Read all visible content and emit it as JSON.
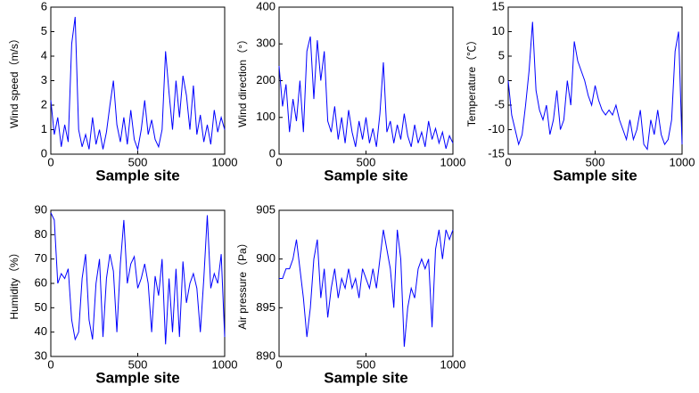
{
  "chart_data": [
    {
      "type": "line",
      "ylabel": "Wind speed（m/s）",
      "xlabel": "Sample site",
      "color": "#0000ff",
      "xlim": [
        0,
        1000
      ],
      "xticks": [
        0,
        500,
        1000
      ],
      "ylim": [
        0,
        6
      ],
      "yticks": [
        0,
        1,
        2,
        3,
        4,
        5,
        6
      ],
      "x": [
        0,
        20,
        40,
        60,
        80,
        100,
        120,
        140,
        160,
        180,
        200,
        220,
        240,
        260,
        280,
        300,
        320,
        340,
        360,
        380,
        400,
        420,
        440,
        460,
        480,
        500,
        520,
        540,
        560,
        580,
        600,
        620,
        640,
        660,
        680,
        700,
        720,
        740,
        760,
        780,
        800,
        820,
        840,
        860,
        880,
        900,
        920,
        940,
        960,
        980,
        1000
      ],
      "values": [
        2.2,
        0.8,
        1.5,
        0.3,
        1.2,
        0.5,
        4.5,
        5.6,
        1.0,
        0.3,
        0.8,
        0.2,
        1.5,
        0.4,
        1.0,
        0.2,
        0.9,
        2.0,
        3.0,
        1.2,
        0.5,
        1.5,
        0.4,
        1.8,
        0.6,
        0.2,
        1.0,
        2.2,
        0.8,
        1.4,
        0.6,
        0.3,
        1.0,
        4.2,
        2.5,
        1.0,
        3.0,
        1.5,
        3.2,
        2.4,
        1.0,
        2.8,
        0.8,
        1.6,
        0.5,
        1.2,
        0.4,
        1.8,
        0.9,
        1.5,
        1.0
      ]
    },
    {
      "type": "line",
      "ylabel": "Wind direction（°）",
      "xlabel": "Sample site",
      "color": "#0000ff",
      "xlim": [
        0,
        1000
      ],
      "xticks": [
        0,
        500,
        1000
      ],
      "ylim": [
        0,
        400
      ],
      "yticks": [
        0,
        100,
        200,
        300,
        400
      ],
      "x": [
        0,
        20,
        40,
        60,
        80,
        100,
        120,
        140,
        160,
        180,
        200,
        220,
        240,
        260,
        280,
        300,
        320,
        340,
        360,
        380,
        400,
        420,
        440,
        460,
        480,
        500,
        520,
        540,
        560,
        580,
        600,
        620,
        640,
        660,
        680,
        700,
        720,
        740,
        760,
        780,
        800,
        820,
        840,
        860,
        880,
        900,
        920,
        940,
        960,
        980,
        1000
      ],
      "values": [
        240,
        130,
        190,
        60,
        150,
        90,
        200,
        60,
        280,
        320,
        150,
        310,
        200,
        280,
        90,
        60,
        130,
        40,
        100,
        30,
        120,
        60,
        20,
        90,
        40,
        100,
        30,
        70,
        20,
        110,
        250,
        60,
        90,
        30,
        80,
        40,
        110,
        50,
        20,
        80,
        30,
        60,
        20,
        90,
        40,
        70,
        30,
        60,
        15,
        50,
        30
      ]
    },
    {
      "type": "line",
      "ylabel": "Temperature（℃）",
      "xlabel": "Sample site",
      "color": "#0000ff",
      "xlim": [
        0,
        1000
      ],
      "xticks": [
        0,
        500,
        1000
      ],
      "ylim": [
        -15,
        15
      ],
      "yticks": [
        -15,
        -10,
        -5,
        0,
        5,
        10,
        15
      ],
      "x": [
        0,
        20,
        40,
        60,
        80,
        100,
        120,
        140,
        160,
        180,
        200,
        220,
        240,
        260,
        280,
        300,
        320,
        340,
        360,
        380,
        400,
        420,
        440,
        460,
        480,
        500,
        520,
        540,
        560,
        580,
        600,
        620,
        640,
        660,
        680,
        700,
        720,
        740,
        760,
        780,
        800,
        820,
        840,
        860,
        880,
        900,
        920,
        940,
        960,
        980,
        1000
      ],
      "values": [
        0,
        -7,
        -10,
        -13,
        -11,
        -5,
        2,
        12,
        -2,
        -6,
        -8,
        -5,
        -11,
        -8,
        -2,
        -10,
        -8,
        0,
        -5,
        8,
        4,
        2,
        0,
        -3,
        -5,
        -1,
        -4,
        -6,
        -7,
        -6,
        -7,
        -5,
        -8,
        -10,
        -12,
        -8,
        -12,
        -10,
        -6,
        -13,
        -14,
        -8,
        -11,
        -6,
        -11,
        -13,
        -12,
        -8,
        6,
        10,
        -13
      ]
    },
    {
      "type": "line",
      "ylabel": "Humidity（%）",
      "xlabel": "Sample site",
      "color": "#0000ff",
      "xlim": [
        0,
        1000
      ],
      "xticks": [
        0,
        500,
        1000
      ],
      "ylim": [
        30,
        90
      ],
      "yticks": [
        30,
        40,
        50,
        60,
        70,
        80,
        90
      ],
      "x": [
        0,
        20,
        40,
        60,
        80,
        100,
        120,
        140,
        160,
        180,
        200,
        220,
        240,
        260,
        280,
        300,
        320,
        340,
        360,
        380,
        400,
        420,
        440,
        460,
        480,
        500,
        520,
        540,
        560,
        580,
        600,
        620,
        640,
        660,
        680,
        700,
        720,
        740,
        760,
        780,
        800,
        820,
        840,
        860,
        880,
        900,
        920,
        940,
        960,
        980,
        1000
      ],
      "values": [
        89,
        86,
        60,
        64,
        62,
        66,
        45,
        37,
        40,
        62,
        72,
        45,
        37,
        60,
        70,
        38,
        62,
        72,
        65,
        40,
        68,
        86,
        60,
        68,
        71,
        58,
        62,
        68,
        60,
        40,
        63,
        55,
        70,
        35,
        62,
        40,
        66,
        38,
        69,
        52,
        60,
        64,
        58,
        40,
        62,
        88,
        58,
        64,
        60,
        72,
        38
      ]
    },
    {
      "type": "line",
      "ylabel": "Air pressure（Pa）",
      "xlabel": "Sample site",
      "color": "#0000ff",
      "xlim": [
        0,
        1000
      ],
      "xticks": [
        0,
        500,
        1000
      ],
      "ylim": [
        890,
        905
      ],
      "yticks": [
        890,
        895,
        900,
        905
      ],
      "x": [
        0,
        20,
        40,
        60,
        80,
        100,
        120,
        140,
        160,
        180,
        200,
        220,
        240,
        260,
        280,
        300,
        320,
        340,
        360,
        380,
        400,
        420,
        440,
        460,
        480,
        500,
        520,
        540,
        560,
        580,
        600,
        620,
        640,
        660,
        680,
        700,
        720,
        740,
        760,
        780,
        800,
        820,
        840,
        860,
        880,
        900,
        920,
        940,
        960,
        980,
        1000
      ],
      "values": [
        898,
        898,
        899,
        899,
        900,
        902,
        899,
        896,
        892,
        895,
        900,
        902,
        896,
        899,
        894,
        897,
        899,
        896,
        898,
        897,
        899,
        897,
        898,
        896,
        899,
        898,
        897,
        899,
        897,
        900,
        903,
        901,
        899,
        895,
        903,
        900,
        891,
        895,
        897,
        896,
        899,
        900,
        899,
        900,
        893,
        901,
        903,
        900,
        903,
        902,
        903
      ]
    }
  ]
}
